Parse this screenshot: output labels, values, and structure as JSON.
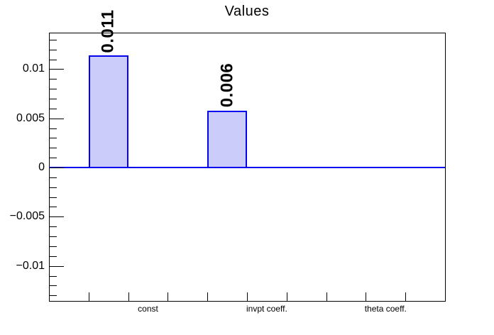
{
  "chart_data": {
    "type": "bar",
    "title": "Values",
    "xlabel": "",
    "ylabel": "",
    "ylim": [
      -0.01356,
      0.01371
    ],
    "grid": false,
    "legend": null,
    "n_bins": 10,
    "values": [
      0,
      0.0114,
      0,
      0,
      0.0058,
      0,
      0,
      0,
      0,
      0
    ],
    "bar_value_labels": [
      {
        "bin": 1,
        "text": "0.011"
      },
      {
        "bin": 4,
        "text": "0.006"
      }
    ],
    "x_bin_labels": [
      {
        "bin": 2,
        "text": "const"
      },
      {
        "bin": 5,
        "text": "invpt coeff."
      },
      {
        "bin": 8,
        "text": "theta coeff."
      }
    ],
    "yticks": [
      {
        "value": 0.01,
        "label": "0.01"
      },
      {
        "value": 0.005,
        "label": "0.005"
      },
      {
        "value": 0,
        "label": "0"
      },
      {
        "value": -0.005,
        "label": "−0.005"
      },
      {
        "value": -0.01,
        "label": "−0.01"
      }
    ],
    "minor_tick_step": 0.001,
    "baseline_value": 0,
    "colors": {
      "bar_fill": "#ccccfa",
      "bar_border": "#0404ee",
      "baseline": "#0404ee",
      "frame": "#000000",
      "text": "#000000"
    }
  }
}
